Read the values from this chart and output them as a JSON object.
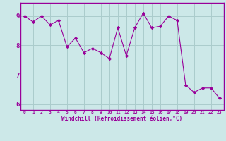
{
  "x": [
    0,
    1,
    2,
    3,
    4,
    5,
    6,
    7,
    8,
    9,
    10,
    11,
    12,
    13,
    14,
    15,
    16,
    17,
    18,
    19,
    20,
    21,
    22,
    23
  ],
  "y": [
    9.0,
    8.8,
    9.0,
    8.7,
    8.85,
    7.95,
    8.25,
    7.75,
    7.9,
    7.75,
    7.55,
    8.6,
    7.65,
    8.6,
    9.1,
    8.6,
    8.65,
    9.0,
    8.85,
    6.65,
    6.4,
    6.55,
    6.55,
    6.2
  ],
  "line_color": "#990099",
  "marker": "D",
  "marker_size": 2.2,
  "bg_color": "#cce8e8",
  "grid_color": "#aacccc",
  "xlabel": "Windchill (Refroidissement éolien,°C)",
  "xlim": [
    -0.5,
    23.5
  ],
  "ylim": [
    5.8,
    9.45
  ],
  "yticks": [
    6,
    7,
    8,
    9
  ],
  "xticks": [
    0,
    1,
    2,
    3,
    4,
    5,
    6,
    7,
    8,
    9,
    10,
    11,
    12,
    13,
    14,
    15,
    16,
    17,
    18,
    19,
    20,
    21,
    22,
    23
  ],
  "tick_color": "#990099",
  "label_color": "#990099",
  "spine_color": "#990099"
}
